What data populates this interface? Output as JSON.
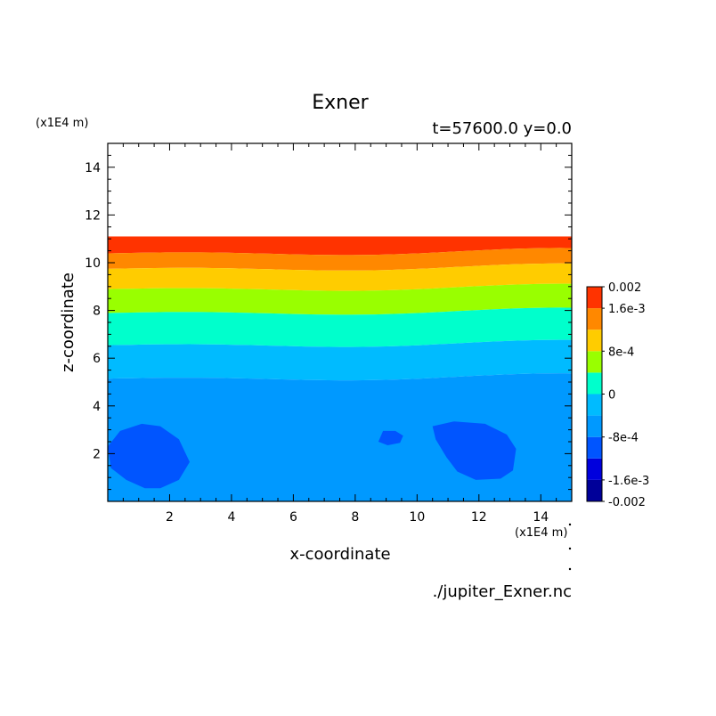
{
  "chart_data": {
    "type": "filled-contour",
    "title": "Exner",
    "subtitle": "t=57600.0 y=0.0",
    "xlabel": "x-coordinate",
    "ylabel": "z-coordinate",
    "x_unit": "(x1E4 m)",
    "y_unit": "(x1E4 m)",
    "xlim": [
      0,
      15
    ],
    "ylim": [
      0,
      15
    ],
    "x_ticks": [
      2,
      4,
      6,
      8,
      10,
      12,
      14
    ],
    "y_ticks": [
      2,
      4,
      6,
      8,
      10,
      12,
      14
    ],
    "x_tick_labels": [
      "2",
      "4",
      "6",
      "8",
      "10",
      "12",
      "14"
    ],
    "y_tick_labels": [
      "2",
      "4",
      "6",
      "8",
      "10",
      "12",
      "14"
    ],
    "levels": [
      -0.002,
      -0.0016,
      -0.0012,
      -0.0008,
      -0.0004,
      0,
      0.0004,
      0.0008,
      0.0012,
      0.0016,
      0.002
    ],
    "colorbar_labels": [
      {
        "text": "0.002",
        "value": 0.002
      },
      {
        "text": "1.6e-3",
        "value": 0.0016
      },
      {
        "text": "8e-4",
        "value": 0.0008
      },
      {
        "text": "0",
        "value": 0
      },
      {
        "text": "-8e-4",
        "value": -0.0008
      },
      {
        "text": "-1.6e-3",
        "value": -0.0016
      },
      {
        "text": "-0.002",
        "value": -0.002
      }
    ],
    "colors": [
      "#000099",
      "#0000dd",
      "#0055ff",
      "#0099ff",
      "#00bbff",
      "#00ffcc",
      "#99ff00",
      "#ffcc00",
      "#ff8800",
      "#ff3300",
      "#ff3333"
    ],
    "filled_bands": [
      {
        "range": [
          0.0016,
          0.002
        ],
        "z_from": 10.45,
        "z_to": 11.1
      },
      {
        "range": [
          0.0012,
          0.0016
        ],
        "z_from": 9.8,
        "z_to": 10.45
      },
      {
        "range": [
          0.0008,
          0.0012
        ],
        "z_from": 8.95,
        "z_to": 9.8
      },
      {
        "range": [
          0.0004,
          0.0008
        ],
        "z_from": 7.95,
        "z_to": 8.95
      },
      {
        "range": [
          0,
          0.0004
        ],
        "z_from": 6.6,
        "z_to": 7.95
      },
      {
        "range": [
          -0.0004,
          0
        ],
        "z_from": 5.2,
        "z_to": 6.6
      },
      {
        "range": [
          -0.0008,
          -0.0004
        ],
        "z_from": 0,
        "z_to": 5.2
      }
    ],
    "low_regions": [
      {
        "range": [
          -0.0012,
          -0.0008
        ],
        "x_center": 1.7,
        "z_center": 1.9
      },
      {
        "range": [
          -0.0012,
          -0.0008
        ],
        "x_center": 9.1,
        "z_center": 2.7
      },
      {
        "range": [
          -0.0012,
          -0.0008
        ],
        "x_center": 12.0,
        "z_center": 2.1
      }
    ]
  },
  "footer": {
    "file": "./jupiter_Exner.nc"
  }
}
